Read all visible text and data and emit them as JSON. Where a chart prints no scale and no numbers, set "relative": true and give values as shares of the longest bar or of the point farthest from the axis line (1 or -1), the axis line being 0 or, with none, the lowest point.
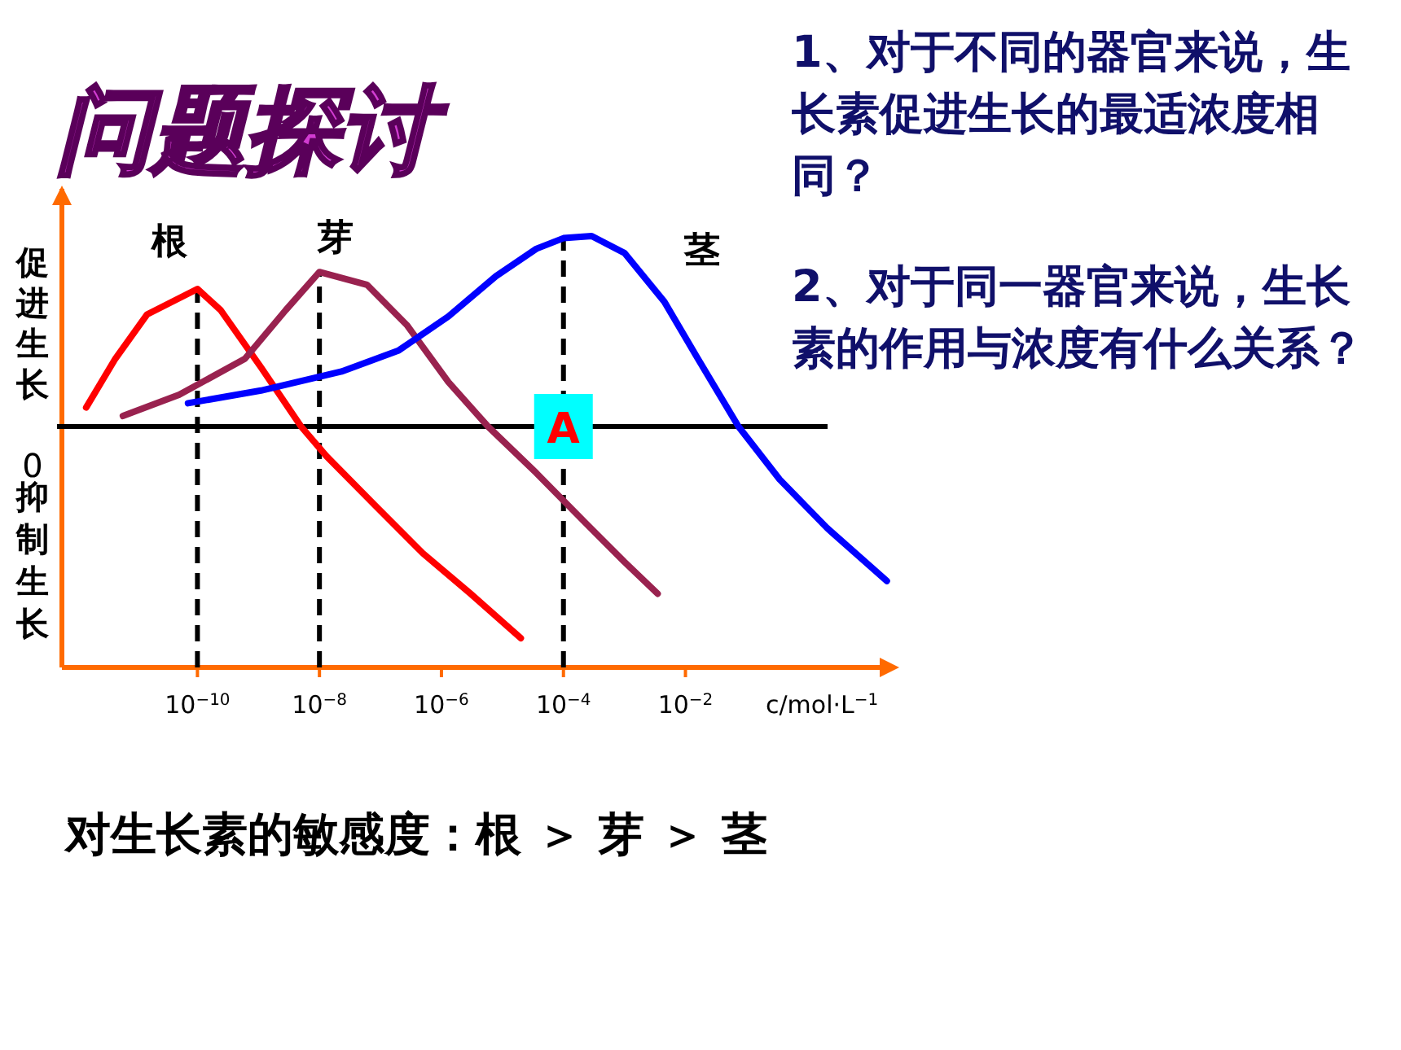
{
  "chart_data": {
    "type": "line",
    "title": "问题探讨",
    "relative": true,
    "log": "x",
    "xlabel": "c/mol·L$^{−1}$",
    "xlim": [
      6e-13,
      25
    ],
    "xticks": [
      {
        "value": 1e-10,
        "label": "10$^{−10}$"
      },
      {
        "value": 1e-08,
        "label": "10$^{−8}$"
      },
      {
        "value": 1e-06,
        "label": "10$^{−6}$"
      },
      {
        "value": 0.0001,
        "label": "10$^{−4}$"
      },
      {
        "value": 0.01,
        "label": "10$^{−2}$"
      }
    ],
    "series": [
      {
        "name": "根",
        "color": "#ff0000",
        "x": [
          1.5e-12,
          4.5e-12,
          1.5e-11,
          1e-10,
          2.4e-10,
          1.1e-09,
          5e-09,
          1.3e-08,
          8e-08,
          5e-07,
          3e-06,
          2e-05
        ],
        "values": [
          0.09,
          0.32,
          0.53,
          0.65,
          0.55,
          0.28,
          0,
          -0.14,
          -0.37,
          -0.6,
          -0.79,
          -1
        ]
      },
      {
        "name": "芽",
        "color": "#99224f",
        "x": [
          6e-12,
          5e-11,
          6e-10,
          2.8e-09,
          1e-08,
          6e-08,
          2.7e-07,
          1.3e-06,
          5.8e-06,
          3.6e-05,
          0.00022,
          0.001,
          0.0035
        ],
        "values": [
          0.05,
          0.15,
          0.32,
          0.55,
          0.73,
          0.67,
          0.48,
          0.21,
          0,
          -0.22,
          -0.45,
          -0.64,
          -0.79
        ]
      },
      {
        "name": "茎",
        "color": "#0000ff",
        "x": [
          7e-11,
          1.1e-09,
          2.3e-08,
          2e-07,
          1.3e-06,
          7.8e-06,
          3.6e-05,
          0.0001,
          0.00029,
          0.001,
          0.0045,
          0.016,
          0.074,
          0.35,
          2.1,
          20
        ],
        "values": [
          0.11,
          0.17,
          0.26,
          0.36,
          0.52,
          0.71,
          0.84,
          0.89,
          0.9,
          0.82,
          0.59,
          0.32,
          0,
          -0.25,
          -0.48,
          -0.73
        ]
      }
    ],
    "ref_lines": [
      {
        "axis": "x",
        "value": 1e-10,
        "line_style": "dashed"
      },
      {
        "axis": "x",
        "value": 1e-08,
        "line_style": "dashed"
      },
      {
        "axis": "x",
        "value": 0.0001,
        "line_style": "dashed"
      }
    ],
    "annotations": [
      "促进生长",
      "0",
      "抑制生长",
      "1、对于不同的器官来说，生长素促进生长的最适浓度相同？",
      "2、对于同一器官来说，生长素的作用与浓度有什么关系？",
      "对生长素的敏感度：根 ＞ 芽 ＞ 茎",
      {
        "text": "A",
        "x": 0.0001,
        "y": 0
      }
    ]
  }
}
